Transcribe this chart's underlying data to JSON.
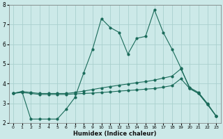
{
  "xlabel": "Humidex (Indice chaleur)",
  "bg_color": "#cce9e8",
  "grid_color": "#aad0ce",
  "line_color": "#1a6b5a",
  "xlim": [
    -0.5,
    23.5
  ],
  "ylim": [
    2.0,
    8.0
  ],
  "xticks": [
    0,
    1,
    2,
    3,
    4,
    5,
    6,
    7,
    8,
    9,
    10,
    11,
    12,
    13,
    14,
    15,
    16,
    17,
    18,
    19,
    20,
    21,
    22,
    23
  ],
  "yticks": [
    2,
    3,
    4,
    5,
    6,
    7,
    8
  ],
  "line_main_x": [
    0,
    1,
    2,
    3,
    4,
    5,
    6,
    7,
    8,
    9,
    10,
    11,
    12,
    13,
    14,
    15,
    16,
    17,
    18,
    19,
    20,
    21,
    22,
    23
  ],
  "line_main_y": [
    3.5,
    3.6,
    2.2,
    2.2,
    2.2,
    2.2,
    2.7,
    3.3,
    4.55,
    5.75,
    7.3,
    6.85,
    6.6,
    5.5,
    6.3,
    6.4,
    7.75,
    6.6,
    5.75,
    4.8,
    3.75,
    3.5,
    2.95,
    2.35
  ],
  "line_upper_x": [
    0,
    1,
    2,
    3,
    4,
    5,
    6,
    7,
    8,
    9,
    10,
    11,
    12,
    13,
    14,
    15,
    16,
    17,
    18,
    19,
    20,
    21,
    22,
    23
  ],
  "line_upper_y": [
    3.5,
    3.6,
    3.55,
    3.5,
    3.5,
    3.5,
    3.5,
    3.55,
    3.62,
    3.7,
    3.78,
    3.85,
    3.92,
    3.98,
    4.05,
    4.1,
    4.18,
    4.28,
    4.38,
    4.75,
    3.8,
    3.55,
    3.0,
    2.35
  ],
  "line_lower_x": [
    0,
    1,
    2,
    3,
    4,
    5,
    6,
    7,
    8,
    9,
    10,
    11,
    12,
    13,
    14,
    15,
    16,
    17,
    18,
    19,
    20,
    21,
    22,
    23
  ],
  "line_lower_y": [
    3.5,
    3.55,
    3.5,
    3.45,
    3.45,
    3.45,
    3.45,
    3.48,
    3.5,
    3.52,
    3.55,
    3.58,
    3.62,
    3.65,
    3.68,
    3.72,
    3.75,
    3.82,
    3.9,
    4.25,
    3.75,
    3.5,
    2.95,
    2.35
  ],
  "markersize": 2.0,
  "linewidth": 0.8
}
